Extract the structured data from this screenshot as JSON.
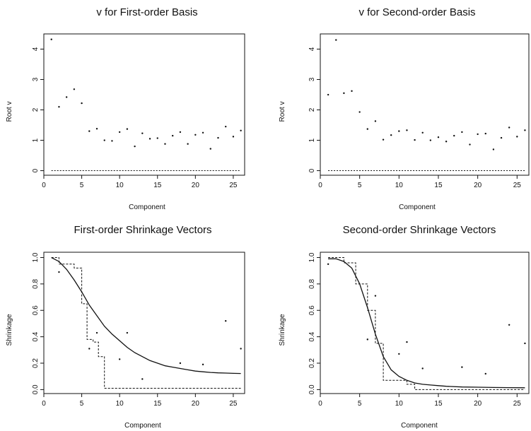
{
  "chart_data": [
    {
      "type": "scatter",
      "title": "v for First-order Basis",
      "xlabel": "Component",
      "ylabel": "Root v",
      "xlim": [
        0,
        26.5
      ],
      "ylim": [
        -0.15,
        4.5
      ],
      "xticks": [
        0,
        5,
        10,
        15,
        20,
        25
      ],
      "yticks": [
        0,
        1,
        2,
        3,
        4
      ],
      "series": [
        {
          "style": "points",
          "x": [
            1,
            2,
            3,
            4,
            5,
            6,
            7,
            8,
            9,
            10,
            11,
            12,
            13,
            14,
            15,
            16,
            17,
            18,
            19,
            20,
            21,
            22,
            23,
            24,
            25,
            26
          ],
          "y": [
            4.32,
            2.1,
            2.42,
            2.68,
            2.22,
            1.3,
            1.38,
            1.0,
            0.98,
            1.27,
            1.37,
            0.8,
            1.23,
            1.05,
            1.07,
            0.88,
            1.15,
            1.27,
            0.88,
            1.18,
            1.25,
            0.72,
            1.08,
            1.45,
            1.12,
            1.32
          ]
        },
        {
          "style": "dotted",
          "x": [
            1,
            26
          ],
          "y": [
            0,
            0
          ]
        }
      ]
    },
    {
      "type": "scatter",
      "title": "v for Second-order Basis",
      "xlabel": "Component",
      "ylabel": "Root v",
      "xlim": [
        0,
        26.5
      ],
      "ylim": [
        -0.15,
        4.5
      ],
      "xticks": [
        0,
        5,
        10,
        15,
        20,
        25
      ],
      "yticks": [
        0,
        1,
        2,
        3,
        4
      ],
      "series": [
        {
          "style": "points",
          "x": [
            1,
            2,
            3,
            4,
            5,
            6,
            7,
            8,
            9,
            10,
            11,
            12,
            13,
            14,
            15,
            16,
            17,
            18,
            19,
            20,
            21,
            22,
            23,
            24,
            25,
            26
          ],
          "y": [
            2.5,
            4.3,
            2.55,
            2.62,
            1.93,
            1.37,
            1.63,
            1.02,
            1.17,
            1.3,
            1.33,
            1.01,
            1.25,
            1.0,
            1.1,
            0.96,
            1.15,
            1.27,
            0.86,
            1.2,
            1.22,
            0.7,
            1.08,
            1.42,
            1.12,
            1.33
          ]
        },
        {
          "style": "dotted",
          "x": [
            1,
            26
          ],
          "y": [
            0,
            0
          ]
        }
      ]
    },
    {
      "type": "line",
      "title": "First-order Shrinkage Vectors",
      "xlabel": "Component",
      "ylabel": "Shrinkage",
      "xlim": [
        0,
        26.5
      ],
      "ylim": [
        -0.03,
        1.04
      ],
      "xticks": [
        0,
        5,
        10,
        15,
        20,
        25
      ],
      "yticks": [
        0.0,
        0.2,
        0.4,
        0.6,
        0.8,
        1.0
      ],
      "series": [
        {
          "style": "solid",
          "x": [
            1,
            2,
            3,
            4,
            5,
            6,
            7,
            8,
            9,
            10,
            11,
            12,
            13,
            14,
            15,
            16,
            17,
            18,
            19,
            20,
            21,
            22,
            23,
            24,
            25,
            26
          ],
          "y": [
            1.0,
            0.97,
            0.91,
            0.83,
            0.74,
            0.64,
            0.56,
            0.48,
            0.42,
            0.37,
            0.32,
            0.28,
            0.25,
            0.22,
            0.2,
            0.18,
            0.17,
            0.16,
            0.15,
            0.14,
            0.135,
            0.13,
            0.127,
            0.125,
            0.123,
            0.122
          ]
        },
        {
          "style": "dashed",
          "x": [
            1,
            2,
            2,
            4,
            4,
            5,
            5,
            5.7,
            5.7,
            6.5,
            6.5,
            7.2,
            7.2,
            8,
            8,
            26
          ],
          "y": [
            1.0,
            1.0,
            0.95,
            0.95,
            0.92,
            0.92,
            0.65,
            0.65,
            0.38,
            0.38,
            0.36,
            0.36,
            0.25,
            0.25,
            0.01,
            0.01
          ]
        },
        {
          "style": "points",
          "x": [
            2,
            6,
            7,
            10,
            11,
            13,
            18,
            21,
            24,
            26
          ],
          "y": [
            0.89,
            0.31,
            0.43,
            0.23,
            0.43,
            0.08,
            0.2,
            0.19,
            0.52,
            0.31
          ]
        }
      ]
    },
    {
      "type": "line",
      "title": "Second-order Shrinkage Vectors",
      "xlabel": "Component",
      "ylabel": "Shrinkage",
      "xlim": [
        0,
        26.5
      ],
      "ylim": [
        -0.03,
        1.04
      ],
      "xticks": [
        0,
        5,
        10,
        15,
        20,
        25
      ],
      "yticks": [
        0.0,
        0.2,
        0.4,
        0.6,
        0.8,
        1.0
      ],
      "series": [
        {
          "style": "solid",
          "x": [
            1,
            2,
            3,
            4,
            5,
            6,
            7,
            8,
            9,
            10,
            11,
            12,
            13,
            14,
            15,
            16,
            18,
            20,
            22,
            24,
            26
          ],
          "y": [
            0.99,
            0.99,
            0.97,
            0.92,
            0.8,
            0.62,
            0.42,
            0.25,
            0.15,
            0.1,
            0.07,
            0.05,
            0.04,
            0.035,
            0.03,
            0.025,
            0.02,
            0.018,
            0.016,
            0.015,
            0.014
          ]
        },
        {
          "style": "dashed",
          "x": [
            1,
            3,
            3,
            4.5,
            4.5,
            6,
            6,
            7,
            7,
            8,
            8,
            11,
            11,
            12,
            12,
            26
          ],
          "y": [
            1.0,
            1.0,
            0.96,
            0.96,
            0.8,
            0.8,
            0.6,
            0.6,
            0.35,
            0.35,
            0.07,
            0.07,
            0.04,
            0.04,
            0.0,
            0.0
          ]
        },
        {
          "style": "points",
          "x": [
            1,
            6,
            7,
            10,
            11,
            13,
            18,
            21,
            24,
            26
          ],
          "y": [
            0.95,
            0.38,
            0.71,
            0.27,
            0.36,
            0.16,
            0.17,
            0.12,
            0.49,
            0.35
          ]
        }
      ]
    }
  ]
}
